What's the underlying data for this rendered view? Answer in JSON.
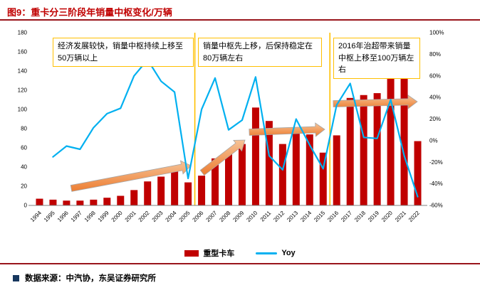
{
  "header": {
    "title": "图9：重卡分三阶段年销量中枢变化/万辆"
  },
  "annotations": {
    "stage1": "经济发展较快，销量中枢持续上移至50万辆以上",
    "stage2": "销量中枢先上移，后保持稳定在80万辆左右",
    "stage3": "2016年治超带来销量中枢上移至100万辆左右"
  },
  "legend": {
    "bar_label": "重型卡车",
    "line_label": "Yoy"
  },
  "footer": {
    "source": "数据来源：中汽协，东吴证券研究所"
  },
  "colors": {
    "title_red": "#C00000",
    "rule_red": "#99151B",
    "bar_red": "#C00000",
    "line_blue": "#00B0F0",
    "stage_yellow": "#FFC000",
    "arrow_orange": "#ED7D31",
    "arrow_light": "#F6C397",
    "source_navy": "#17375E",
    "axis_gray": "#7F7F7F"
  },
  "chart_data": {
    "type": "bar",
    "subtype": "combo-bar-line",
    "title": "重卡分三阶段年销量中枢变化/万辆",
    "grid": false,
    "legend_position": "bottom",
    "categories": [
      "1994",
      "1995",
      "1996",
      "1997",
      "1998",
      "1999",
      "2000",
      "2001",
      "2002",
      "2003",
      "2004",
      "2005",
      "2006",
      "2007",
      "2008",
      "2009",
      "2010",
      "2011",
      "2012",
      "2013",
      "2014",
      "2015",
      "2016",
      "2017",
      "2018",
      "2019",
      "2020",
      "2021",
      "2022"
    ],
    "series": [
      {
        "name": "重型卡车",
        "type": "bar",
        "axis": "left",
        "unit": "万辆",
        "values": [
          7,
          6,
          5,
          5,
          6,
          8,
          10,
          16,
          25,
          30,
          37,
          24,
          31,
          49,
          54,
          64,
          102,
          88,
          64,
          77,
          74,
          55,
          73,
          112,
          115,
          117,
          162,
          140,
          67
        ]
      },
      {
        "name": "Yoy",
        "type": "line",
        "axis": "right",
        "unit": "%",
        "values": [
          null,
          -15,
          -5,
          -8,
          12,
          25,
          30,
          60,
          75,
          55,
          45,
          -35,
          29,
          58,
          10,
          19,
          59,
          -14,
          -27,
          20,
          -4,
          -26,
          33,
          53,
          3,
          2,
          38,
          -14,
          -52
        ]
      }
    ],
    "left_axis": {
      "min": 0,
      "max": 180,
      "step": 20,
      "tick_labels": [
        "180",
        "160",
        "140",
        "120",
        "100",
        "80",
        "60",
        "40",
        "20",
        "0"
      ]
    },
    "right_axis": {
      "min": -60,
      "max": 100,
      "step": 20,
      "tick_labels": [
        "100%",
        "80%",
        "60%",
        "40%",
        "20%",
        "0%",
        "-20%",
        "-40%",
        "-60%"
      ]
    },
    "stage_dividers_after": [
      "2005",
      "2015"
    ]
  }
}
